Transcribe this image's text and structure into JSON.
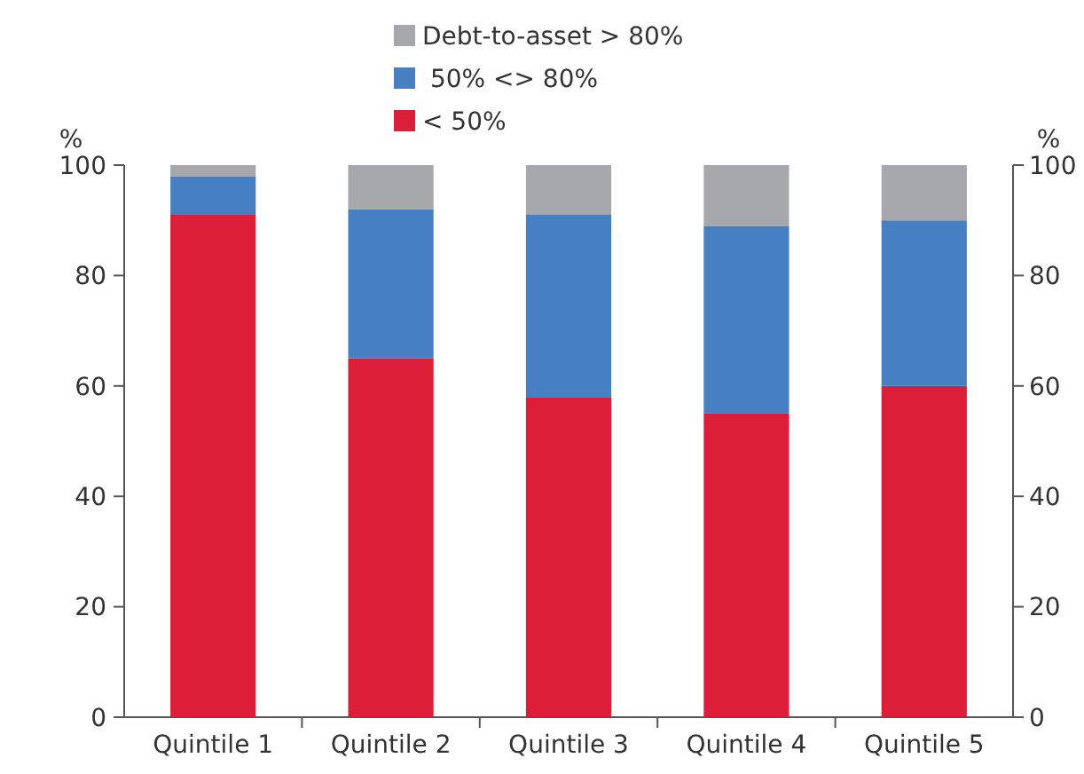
{
  "chart_data": {
    "type": "bar",
    "stacked": true,
    "categories": [
      "Quintile 1",
      "Quintile 2",
      "Quintile 3",
      "Quintile 4",
      "Quintile 5"
    ],
    "series": [
      {
        "name": "< 50%",
        "color": "#dc1e38",
        "values": [
          91,
          65,
          58,
          55,
          60
        ]
      },
      {
        "name": " 50% <> 80%",
        "color": "#4680c3",
        "values": [
          7,
          27,
          33,
          34,
          30
        ]
      },
      {
        "name": "Debt-to-asset > 80%",
        "color": "#a7a8ab",
        "values": [
          2,
          8,
          9,
          11,
          10
        ]
      }
    ],
    "ylabel": "%",
    "y2label": "%",
    "ylim": [
      0,
      100
    ],
    "yticks": [
      0,
      20,
      40,
      60,
      80,
      100
    ],
    "y2lim": [
      0,
      100
    ],
    "y2ticks": [
      0,
      20,
      40,
      60,
      80,
      100
    ],
    "legend": "top",
    "grid": false
  }
}
